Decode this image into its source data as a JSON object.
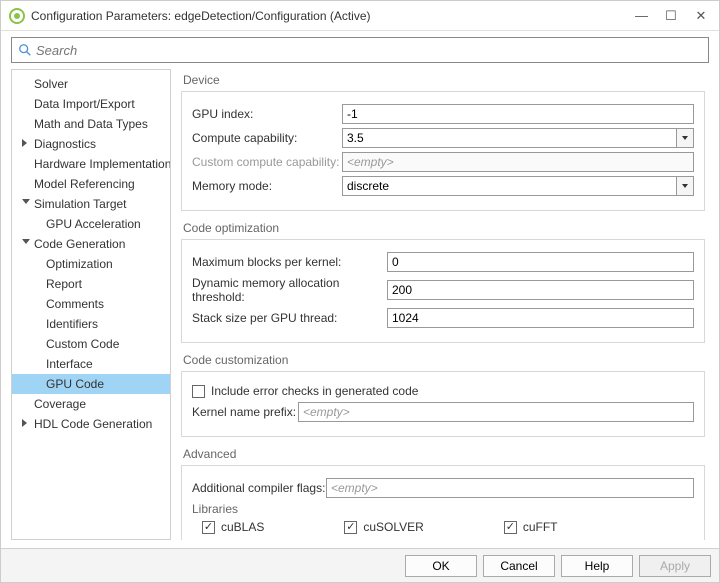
{
  "window": {
    "title": "Configuration Parameters: edgeDetection/Configuration (Active)"
  },
  "search": {
    "placeholder": "Search"
  },
  "tree": {
    "items": [
      {
        "label": "Solver",
        "lvl": 0
      },
      {
        "label": "Data Import/Export",
        "lvl": 0
      },
      {
        "label": "Math and Data Types",
        "lvl": 0
      },
      {
        "label": "Diagnostics",
        "lvl": 0,
        "arrow": "collapsed"
      },
      {
        "label": "Hardware Implementation",
        "lvl": 0
      },
      {
        "label": "Model Referencing",
        "lvl": 0
      },
      {
        "label": "Simulation Target",
        "lvl": 0,
        "arrow": "expanded"
      },
      {
        "label": "GPU Acceleration",
        "lvl": 1
      },
      {
        "label": "Code Generation",
        "lvl": 0,
        "arrow": "expanded"
      },
      {
        "label": "Optimization",
        "lvl": 1
      },
      {
        "label": "Report",
        "lvl": 1
      },
      {
        "label": "Comments",
        "lvl": 1
      },
      {
        "label": "Identifiers",
        "lvl": 1
      },
      {
        "label": "Custom Code",
        "lvl": 1
      },
      {
        "label": "Interface",
        "lvl": 1
      },
      {
        "label": "GPU Code",
        "lvl": 1,
        "selected": true
      },
      {
        "label": "Coverage",
        "lvl": 0
      },
      {
        "label": "HDL Code Generation",
        "lvl": 0,
        "arrow": "collapsed"
      }
    ]
  },
  "groups": {
    "device": {
      "title": "Device",
      "gpu_index_label": "GPU index:",
      "gpu_index": "-1",
      "compute_label": "Compute capability:",
      "compute": "3.5",
      "custom_compute_label": "Custom compute capability:",
      "custom_compute": "<empty>",
      "memory_label": "Memory mode:",
      "memory": "discrete"
    },
    "opt": {
      "title": "Code optimization",
      "max_blocks_label": "Maximum blocks per kernel:",
      "max_blocks": "0",
      "dyn_mem_label": "Dynamic memory allocation threshold:",
      "dyn_mem": "200",
      "stack_label": "Stack size per GPU thread:",
      "stack": "1024"
    },
    "cust": {
      "title": "Code customization",
      "include_err": "Include error checks in generated code",
      "kernel_prefix_label": "Kernel name prefix:",
      "kernel_prefix": "<empty>"
    },
    "adv": {
      "title": "Advanced",
      "flags_label": "Additional compiler flags:",
      "flags": "<empty>",
      "libs_title": "Libraries",
      "libs": {
        "cublas": "cuBLAS",
        "cusolver": "cuSOLVER",
        "cufft": "cuFFT"
      }
    }
  },
  "footer": {
    "ok": "OK",
    "cancel": "Cancel",
    "help": "Help",
    "apply": "Apply"
  }
}
